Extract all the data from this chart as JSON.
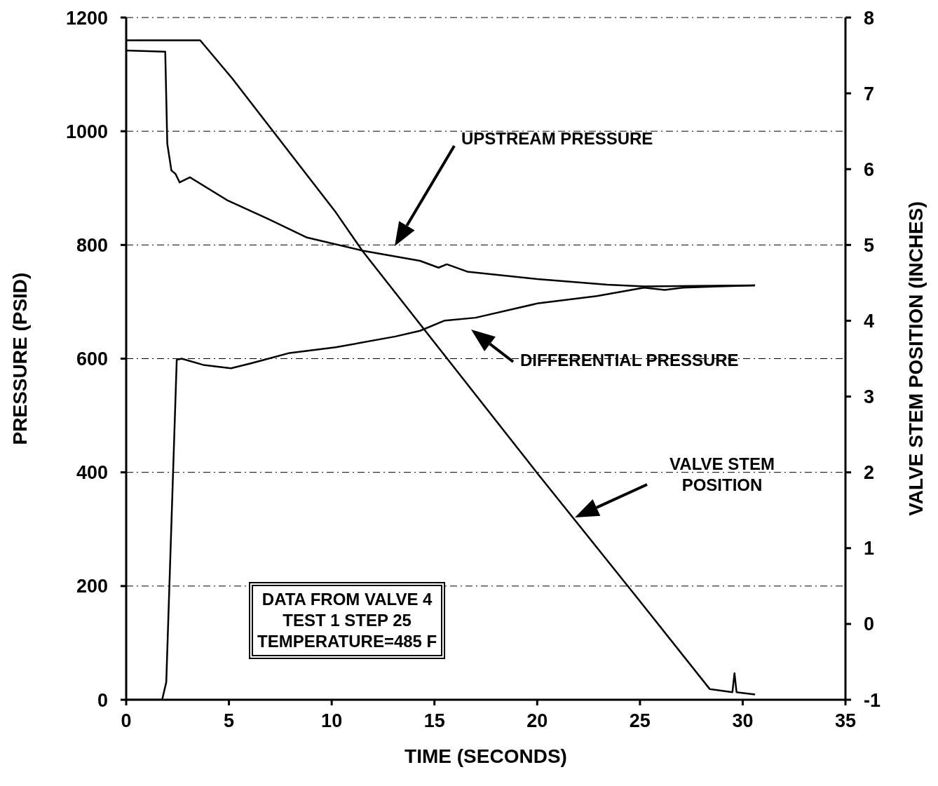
{
  "chart_data": {
    "type": "line",
    "xlabel": "TIME (SECONDS)",
    "ylabel": "PRESSURE (PSID)",
    "y2label": "VALVE STEM POSITION (INCHES)",
    "xlim": [
      0,
      35
    ],
    "xticks": [
      0,
      5,
      10,
      15,
      20,
      25,
      30,
      35
    ],
    "ylim": [
      0,
      1200
    ],
    "yticks": [
      0,
      200,
      400,
      600,
      800,
      1000,
      1200
    ],
    "y2lim": [
      -1,
      8
    ],
    "y2ticks": [
      -1,
      0,
      1,
      2,
      3,
      4,
      5,
      6,
      7,
      8
    ],
    "grid": true,
    "legend": false,
    "marker": "none",
    "line_style": "solid",
    "series": [
      {
        "color": "#000000",
        "x": [
          0,
          1.9,
          2.0,
          2.2,
          2.4,
          2.6,
          3.1,
          4.9,
          6.9,
          8.8,
          11.5,
          14.3,
          15.2,
          15.6,
          16.6,
          20,
          23.4,
          25.2,
          30.6
        ],
        "values": [
          1142,
          1140,
          978,
          931,
          925,
          910,
          919,
          879,
          846,
          813,
          790,
          772,
          760,
          766,
          753,
          740,
          730,
          727,
          729
        ]
      },
      {
        "color": "#000000",
        "x": [
          0,
          1.75,
          1.95,
          2.46,
          2.7,
          3.75,
          5.1,
          6.1,
          7.95,
          10.2,
          13.1,
          14.3,
          15.5,
          17.0,
          20,
          22.9,
          25.2,
          26.2,
          27.1,
          30.6
        ],
        "values": [
          0,
          0,
          31,
          598,
          600,
          589,
          583,
          592,
          610,
          620,
          639,
          649,
          667,
          672,
          697,
          710,
          725,
          721,
          725,
          729
        ]
      },
      {
        "color": "#000000",
        "axis": "y2",
        "x": [
          0,
          3.6,
          5.15,
          10.2,
          11.5,
          20,
          25,
          28.4,
          29.5,
          29.6,
          29.7,
          30.6
        ],
        "values": [
          7.7,
          7.7,
          7.2,
          5.43,
          4.92,
          1.99,
          0.3,
          -0.86,
          -0.9,
          -0.65,
          -0.9,
          -0.93
        ]
      }
    ],
    "annotations": [
      "UPSTREAM PRESSURE",
      "DIFFERENTIAL PRESSURE",
      "VALVE STEM\nPOSITION",
      "DATA FROM VALVE 4\nTEST 1 STEP 25\nTEMPERATURE=485 F"
    ]
  }
}
